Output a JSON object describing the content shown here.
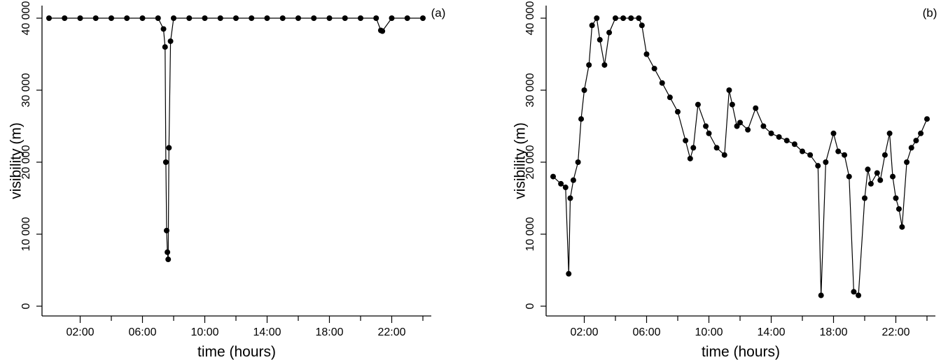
{
  "chart_data": [
    {
      "type": "scatter",
      "panel_label": "(a)",
      "xlabel": "time (hours)",
      "ylabel": "visibility (m)",
      "xlim": [
        0,
        24
      ],
      "ylim": [
        0,
        40000
      ],
      "xticks": [
        2,
        4,
        6,
        8,
        10,
        12,
        14,
        16,
        18,
        20,
        22,
        24
      ],
      "xtick_labels": [
        "02:00",
        "",
        "06:00",
        "",
        "10:00",
        "",
        "14:00",
        "",
        "18:00",
        "",
        "22:00",
        ""
      ],
      "yticks": [
        0,
        10000,
        20000,
        30000,
        40000
      ],
      "ytick_labels": [
        "0",
        "10 000",
        "20 000",
        "30 000",
        "40 000"
      ],
      "grid": false,
      "series": [
        {
          "x": [
            0,
            1,
            2,
            3,
            4,
            5,
            6,
            7,
            7.35,
            7.45,
            7.5,
            7.55,
            7.6,
            7.65,
            7.7,
            7.8,
            8,
            9,
            10,
            11,
            12,
            13,
            14,
            15,
            16,
            17,
            18,
            19,
            20,
            21,
            21.3,
            21.4,
            22,
            23,
            24
          ],
          "y": [
            40000,
            40000,
            40000,
            40000,
            40000,
            40000,
            40000,
            40000,
            38500,
            36000,
            20000,
            10500,
            7500,
            6500,
            22000,
            36800,
            40000,
            40000,
            40000,
            40000,
            40000,
            40000,
            40000,
            40000,
            40000,
            40000,
            40000,
            40000,
            40000,
            40000,
            38300,
            38200,
            40000,
            40000,
            40000
          ]
        }
      ]
    },
    {
      "type": "scatter",
      "panel_label": "(b)",
      "xlabel": "time (hours)",
      "ylabel": "visibility (m)",
      "xlim": [
        0,
        24
      ],
      "ylim": [
        0,
        40000
      ],
      "xticks": [
        2,
        4,
        6,
        8,
        10,
        12,
        14,
        16,
        18,
        20,
        22,
        24
      ],
      "xtick_labels": [
        "02:00",
        "",
        "06:00",
        "",
        "10:00",
        "",
        "14:00",
        "",
        "18:00",
        "",
        "22:00",
        ""
      ],
      "yticks": [
        0,
        10000,
        20000,
        30000,
        40000
      ],
      "ytick_labels": [
        "0",
        "10 000",
        "20 000",
        "30 000",
        "40 000"
      ],
      "grid": false,
      "series": [
        {
          "x": [
            0,
            0.5,
            0.8,
            1,
            1.1,
            1.3,
            1.6,
            1.8,
            2,
            2.3,
            2.5,
            2.8,
            3,
            3.3,
            3.6,
            4,
            4.5,
            5,
            5.5,
            5.7,
            6,
            6.5,
            7,
            7.5,
            8,
            8.5,
            8.8,
            9,
            9.3,
            9.8,
            10,
            10.5,
            11,
            11.3,
            11.5,
            11.8,
            12,
            12.5,
            13,
            13.5,
            14,
            14.5,
            15,
            15.5,
            16,
            16.5,
            17,
            17.2,
            17.5,
            18,
            18.3,
            18.7,
            19,
            19.3,
            19.6,
            20,
            20.2,
            20.4,
            20.8,
            21,
            21.3,
            21.6,
            21.8,
            22,
            22.2,
            22.4,
            22.7,
            23,
            23.3,
            23.6,
            24
          ],
          "y": [
            18000,
            17000,
            16500,
            4500,
            15000,
            17500,
            20000,
            26000,
            30000,
            33500,
            39000,
            40000,
            37000,
            33500,
            38000,
            40000,
            40000,
            40000,
            40000,
            39000,
            35000,
            33000,
            31000,
            29000,
            27000,
            23000,
            20500,
            22000,
            28000,
            25000,
            24000,
            22000,
            21000,
            30000,
            28000,
            25000,
            25500,
            24500,
            27500,
            25000,
            24000,
            23500,
            23000,
            22500,
            21500,
            21000,
            19500,
            1500,
            20000,
            24000,
            21500,
            21000,
            18000,
            2000,
            1500,
            15000,
            19000,
            17000,
            18500,
            17500,
            21000,
            24000,
            18000,
            15000,
            13500,
            11000,
            20000,
            22000,
            23000,
            24000,
            26000
          ]
        }
      ]
    }
  ]
}
